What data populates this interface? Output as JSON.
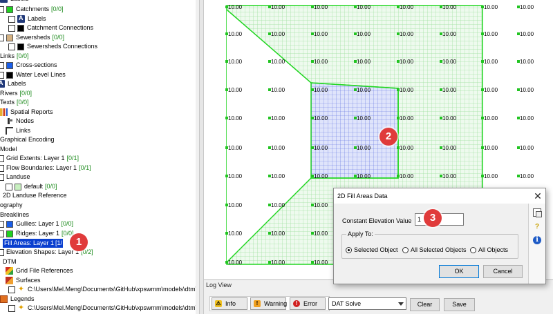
{
  "layer_tree": {
    "items": [
      {
        "label": "Labels",
        "swatch": "#223a7a"
      },
      {
        "label": "Catchments",
        "count": "[0/0]",
        "swatch": "#20d020"
      },
      {
        "label": "Labels",
        "swatch": "#223a7a"
      },
      {
        "label": "Catchment Connections",
        "swatch": "#000000"
      },
      {
        "label": "Sewersheds",
        "count": "[0/0]",
        "swatch": "#d4b080"
      },
      {
        "label": "Sewersheds Connections",
        "swatch": "#000000"
      },
      {
        "label": "Links",
        "count": "[0/0]"
      },
      {
        "label": "Cross-sections",
        "swatch": "#1a5ee8"
      },
      {
        "label": "Water Level Lines",
        "swatch": "#000000"
      },
      {
        "label": "Labels",
        "swatch": "#223a7a"
      },
      {
        "label": "Rivers",
        "count": "[0/0]"
      },
      {
        "label": "Texts",
        "count": "[0/0]"
      },
      {
        "label": "Spatial Reports"
      },
      {
        "label": "Nodes"
      },
      {
        "label": "Links"
      },
      {
        "label": "Graphical Encoding"
      },
      {
        "label": "Model"
      },
      {
        "label": "Grid Extents: Layer 1",
        "count": "[0/1]"
      },
      {
        "label": "Flow Boundaries: Layer 1",
        "count": "[0/1]"
      },
      {
        "label": "Landuse"
      },
      {
        "label": "default",
        "count": "[0/0]",
        "swatch": "#c8f0c0"
      },
      {
        "label": "2D Landuse Reference"
      },
      {
        "label": "ography"
      },
      {
        "label": "Breaklines"
      },
      {
        "label": "Gullies: Layer 1",
        "count": "[0/0]",
        "swatch": "#1a5ee8"
      },
      {
        "label": "Ridges: Layer 1",
        "count": "[0/0]",
        "swatch": "#20d020"
      },
      {
        "label": "Fill Areas: Layer 1",
        "count": "[1/",
        "selected": true
      },
      {
        "label": "Elevation Shapes: Layer 1",
        "count": "[0/2]"
      },
      {
        "label": "DTM"
      },
      {
        "label": "Grid File References"
      },
      {
        "label": "Surfaces"
      },
      {
        "label": "C:\\Users\\Mel.Meng\\Documents\\GitHub\\xpswmm\\models\\dtm\\dtm"
      },
      {
        "label": "Legends"
      },
      {
        "label": "C:\\Users\\Mel.Meng\\Documents\\GitHub\\xpswmm\\models\\dtm\\dtm"
      }
    ]
  },
  "map": {
    "elevation_label": "10.00",
    "colors": {
      "grid_fill": "#c8f0c8",
      "grid_outline": "#22d622",
      "fill_area": "#5a6ee0",
      "node_dot": "#22c422"
    }
  },
  "badges": {
    "one": "1",
    "two": "2",
    "three": "3"
  },
  "log_view": {
    "title": "Log View",
    "info": "Info",
    "warning": "Warning",
    "error": "Error",
    "selected_source": "DAT Solve",
    "clear": "Clear",
    "save": "Save"
  },
  "dialog": {
    "title": "2D Fill Areas Data",
    "close_glyph": "✕",
    "elevation_label": "Constant Elevation Value",
    "elevation_value": "1",
    "apply_to": "Apply To:",
    "options": [
      "Selected Object",
      "All Selected Objects",
      "All Objects"
    ],
    "ok": "OK",
    "cancel": "Cancel",
    "help_glyph": "?",
    "info_glyph": "i"
  }
}
